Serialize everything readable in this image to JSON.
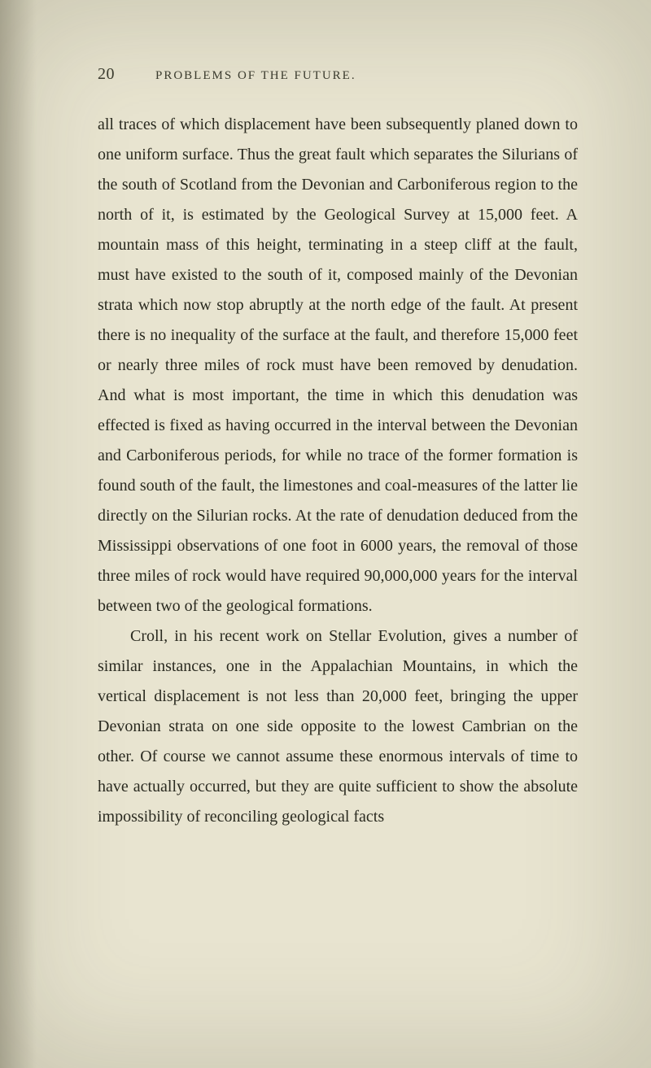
{
  "page": {
    "number": "20",
    "chapterTitle": "PROBLEMS OF THE FUTURE.",
    "background_color": "#e8e4d0",
    "text_color": "#2a2a20",
    "header_color": "#3a3a2e",
    "body_fontsize": 20,
    "line_height": 1.85,
    "paragraphs": [
      "all traces of which displacement have been subsequently planed down to one uniform surface. Thus the great fault which separates the Silurians of the south of Scotland from the Devonian and Carboniferous region to the north of it, is estimated by the Geological Survey at 15,000 feet. A mountain mass of this height, terminating in a steep cliff at the fault, must have existed to the south of it, composed mainly of the Devonian strata which now stop abruptly at the north edge of the fault. At present there is no inequality of the surface at the fault, and therefore 15,000 feet or nearly three miles of rock must have been removed by denudation. And what is most important, the time in which this denudation was effected is fixed as having occurred in the interval between the Devonian and Carboniferous periods, for while no trace of the former formation is found south of the fault, the limestones and coal-measures of the latter lie directly on the Silurian rocks. At the rate of denudation deduced from the Mississippi observations of one foot in 6000 years, the removal of those three miles of rock would have required 90,000,000 years for the interval between two of the geological formations.",
      "Croll, in his recent work on Stellar Evolution, gives a number of similar instances, one in the Appalachian Mountains, in which the vertical displacement is not less than 20,000 feet, bringing the upper Devonian strata on one side opposite to the lowest Cambrian on the other. Of course we cannot assume these enormous intervals of time to have actually occurred, but they are quite sufficient to show the absolute impossibility of reconciling geological facts"
    ]
  }
}
